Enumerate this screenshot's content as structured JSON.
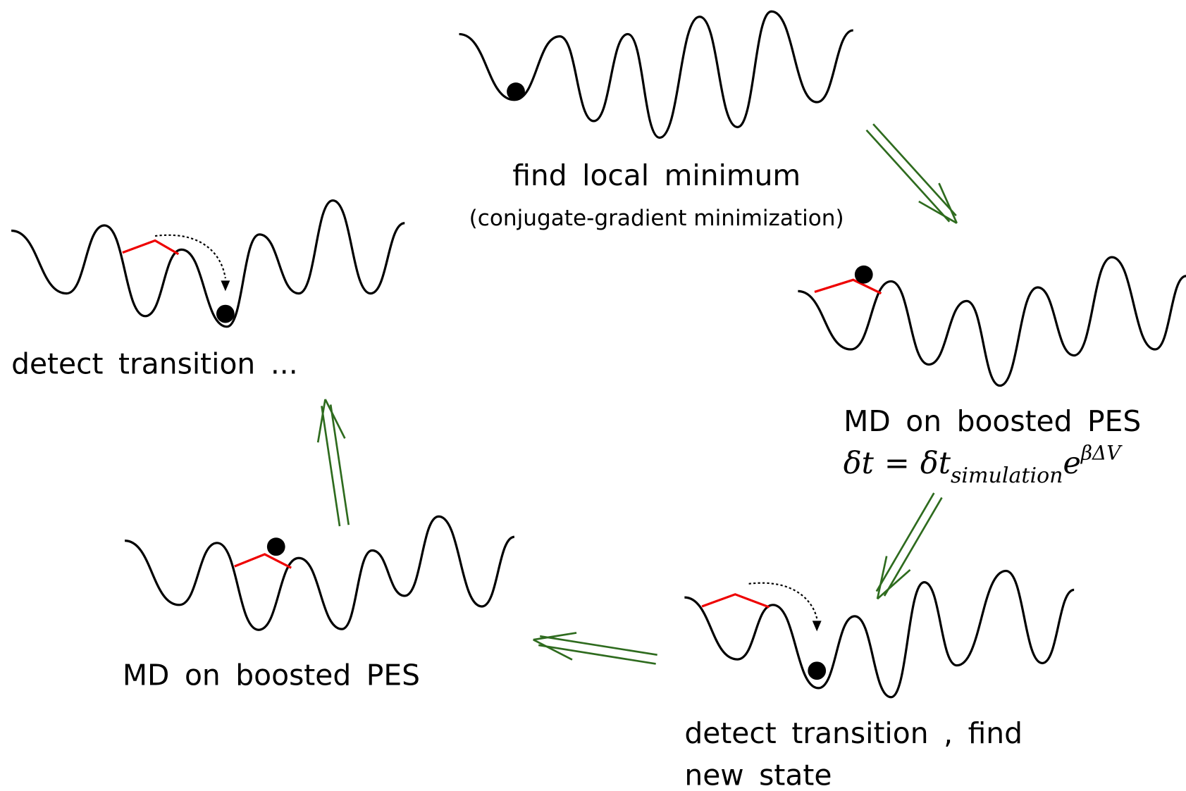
{
  "steps": {
    "find_minimum": {
      "title": "find local minimum",
      "subtitle": "(conjugate-gradient minimization)"
    },
    "md_boosted_right": {
      "title": "MD on boosted PES",
      "formula": [
        "δt",
        "=",
        "δt",
        "simulation",
        "e",
        "βΔV"
      ]
    },
    "detect_new_state": {
      "lines": [
        "detect transition , find",
        "new state"
      ]
    },
    "md_boosted_left": {
      "title": "MD on boosted PES"
    },
    "detect_transition": {
      "title": "detect transition ..."
    }
  }
}
